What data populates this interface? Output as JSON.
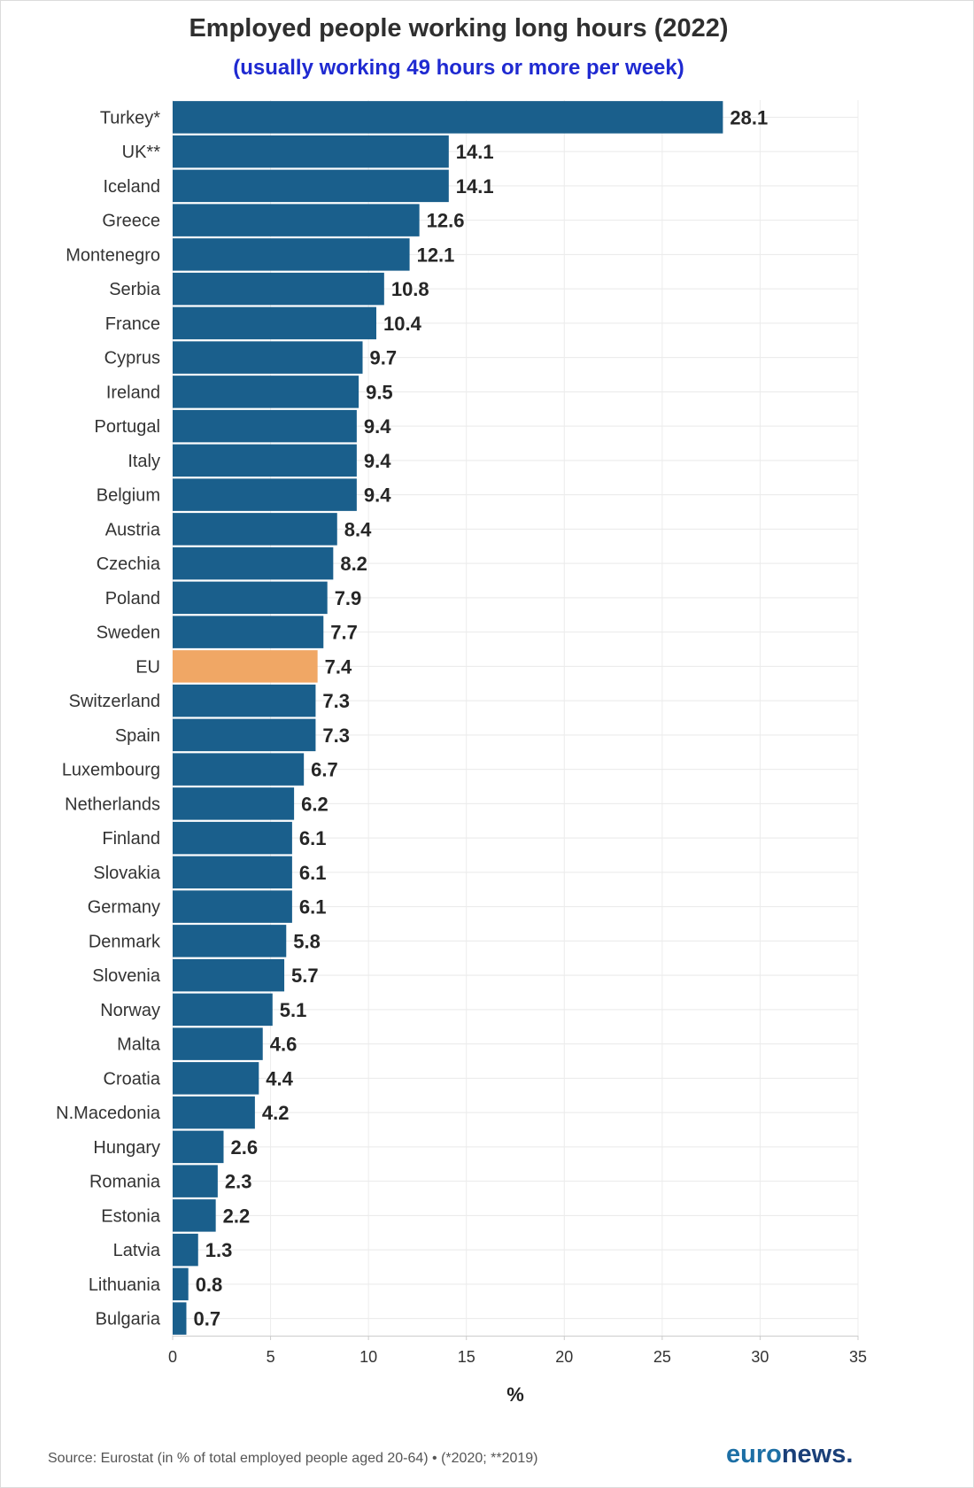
{
  "chart_data": {
    "type": "bar",
    "orientation": "horizontal",
    "title": "Employed people working long hours (2022)",
    "subtitle": "(usually working 49 hours or more per week)",
    "xlabel": "%",
    "ylabel": "",
    "xlim": [
      0,
      35
    ],
    "xticks": [
      0,
      5,
      10,
      15,
      20,
      25,
      30,
      35
    ],
    "grid": "vertical lines at ticks and horizontal row lines",
    "categories": [
      "Turkey*",
      "UK**",
      "Iceland",
      "Greece",
      "Montenegro",
      "Serbia",
      "France",
      "Cyprus",
      "Ireland",
      "Portugal",
      "Italy",
      "Belgium",
      "Austria",
      "Czechia",
      "Poland",
      "Sweden",
      "EU",
      "Switzerland",
      "Spain",
      "Luxembourg",
      "Netherlands",
      "Finland",
      "Slovakia",
      "Germany",
      "Denmark",
      "Slovenia",
      "Norway",
      "Malta",
      "Croatia",
      "N.Macedonia",
      "Hungary",
      "Romania",
      "Estonia",
      "Latvia",
      "Lithuania",
      "Bulgaria"
    ],
    "values": [
      28.1,
      14.1,
      14.1,
      12.6,
      12.1,
      10.8,
      10.4,
      9.7,
      9.5,
      9.4,
      9.4,
      9.4,
      8.4,
      8.2,
      7.9,
      7.7,
      7.4,
      7.3,
      7.3,
      6.7,
      6.2,
      6.1,
      6.1,
      6.1,
      5.8,
      5.7,
      5.1,
      4.6,
      4.4,
      4.2,
      2.6,
      2.3,
      2.2,
      1.3,
      0.8,
      0.7
    ],
    "highlight_category": "EU",
    "colors": {
      "bar": "#1a5f8c",
      "highlight": "#f0a765",
      "subtitle": "#1f2ad1"
    }
  },
  "footer": {
    "source": "Source: Eurostat (in % of total employed people aged 20-64) • (*2020; **2019)",
    "logo_part1": "euro",
    "logo_part2": "news",
    "logo_dot": "."
  },
  "colors": {
    "logo_part1": "#1d6fa5",
    "logo_part2": "#1a3f78"
  }
}
